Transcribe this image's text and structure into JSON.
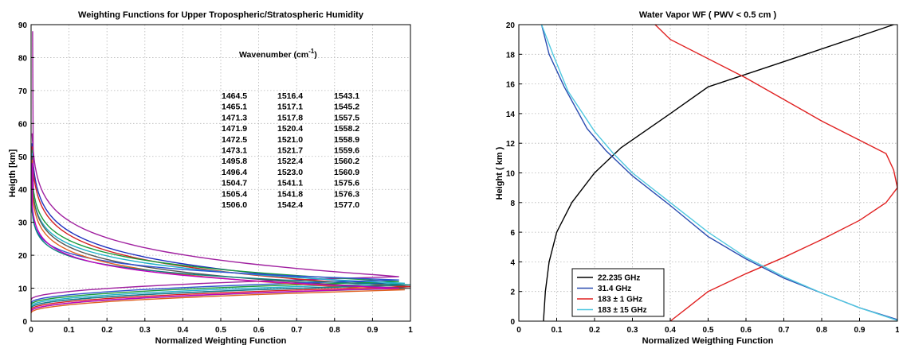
{
  "chart_data": [
    {
      "type": "line",
      "title": "Weighting Functions for Upper Tropospheric/Stratospheric Humidity",
      "xlabel": "Normalized Weighting Function",
      "ylabel": "Heigth [km]",
      "xlim": [
        0,
        1
      ],
      "ylim": [
        0,
        90
      ],
      "xticks": [
        "0",
        "0.1",
        "0.2",
        "0.3",
        "0.4",
        "0.5",
        "0.6",
        "0.7",
        "0.8",
        "0.9",
        "1"
      ],
      "yticks": [
        "0",
        "10",
        "20",
        "30",
        "40",
        "50",
        "60",
        "70",
        "80",
        "90"
      ],
      "grid": true,
      "annotation_title": "Wavenumber (cm",
      "annotation_unit_sup": "-1",
      "annotation_close": ")",
      "wavenumber_columns": [
        [
          "1464.5",
          "1465.1",
          "1471.3",
          "1471.9",
          "1472.5",
          "1473.1",
          "1495.8",
          "1496.4",
          "1504.7",
          "1505.4",
          "1506.0"
        ],
        [
          "1516.4",
          "1517.1",
          "1517.8",
          "1520.4",
          "1521.0",
          "1521.7",
          "1522.4",
          "1523.0",
          "1541.1",
          "1541.8",
          "1542.4"
        ],
        [
          "1543.1",
          "1545.2",
          "1557.5",
          "1558.2",
          "1558.9",
          "1559.6",
          "1560.2",
          "1560.9",
          "1575.6",
          "1576.3",
          "1577.0"
        ]
      ],
      "series_colors": [
        "#1f2fbf",
        "#d42020",
        "#1a9a3a",
        "#20b0c8",
        "#a020a0",
        "#555555",
        "#3050d0",
        "#e06020",
        "#108080",
        "#c000c0"
      ],
      "series": [
        {
          "peak_height": 13.5,
          "tail_height": 27,
          "color": "#a020a0"
        },
        {
          "peak_height": 11,
          "tail_height": 24,
          "color": "#1f2fbf"
        },
        {
          "peak_height": 10.5,
          "tail_height": 23,
          "color": "#d42020"
        },
        {
          "peak_height": 12,
          "tail_height": 22,
          "color": "#1a9a3a"
        },
        {
          "peak_height": 11.5,
          "tail_height": 21,
          "color": "#20b0c8"
        },
        {
          "peak_height": 10,
          "tail_height": 20,
          "color": "#555555"
        },
        {
          "peak_height": 12.5,
          "tail_height": 19,
          "color": "#3050d0"
        },
        {
          "peak_height": 9.5,
          "tail_height": 19,
          "color": "#e06020"
        },
        {
          "peak_height": 11,
          "tail_height": 18,
          "color": "#108080"
        },
        {
          "peak_height": 10,
          "tail_height": 18,
          "color": "#c000c0"
        }
      ]
    },
    {
      "type": "line",
      "title": "Water Vapor WF ( PWV < 0.5 cm )",
      "xlabel": "Normalized Weigthing Function",
      "ylabel": "Height ( km )",
      "xlim": [
        0,
        1
      ],
      "ylim": [
        0,
        20
      ],
      "xticks": [
        "0",
        "0.1",
        "0.2",
        "0.3",
        "0.4",
        "0.5",
        "0.6",
        "0.7",
        "0.8",
        "0.9",
        "1"
      ],
      "yticks": [
        "0",
        "2",
        "4",
        "6",
        "8",
        "10",
        "12",
        "14",
        "16",
        "18",
        "20"
      ],
      "grid": true,
      "legend_position": "bottom-left",
      "series": [
        {
          "name": "22.235 GHz",
          "color": "#000000",
          "points": [
            [
              0.065,
              0
            ],
            [
              0.07,
              2
            ],
            [
              0.08,
              4
            ],
            [
              0.1,
              6
            ],
            [
              0.14,
              8
            ],
            [
              0.2,
              10
            ],
            [
              0.27,
              11.7
            ],
            [
              0.4,
              14
            ],
            [
              0.5,
              15.8
            ],
            [
              0.7,
              17.5
            ],
            [
              0.99,
              20
            ]
          ]
        },
        {
          "name": "31.4 GHz",
          "color": "#2a4bb0",
          "points": [
            [
              0.06,
              20
            ],
            [
              0.08,
              18
            ],
            [
              0.12,
              15.8
            ],
            [
              0.18,
              13
            ],
            [
              0.23,
              11.5
            ],
            [
              0.3,
              9.8
            ],
            [
              0.4,
              7.8
            ],
            [
              0.5,
              5.7
            ],
            [
              0.6,
              4.2
            ],
            [
              0.7,
              2.9
            ],
            [
              0.8,
              1.9
            ],
            [
              0.9,
              0.9
            ],
            [
              1.0,
              0.1
            ]
          ]
        },
        {
          "name": "183 ± 1 GHz",
          "color": "#e02020",
          "points": [
            [
              0.4,
              0
            ],
            [
              0.45,
              1
            ],
            [
              0.5,
              2
            ],
            [
              0.55,
              2.6
            ],
            [
              0.6,
              3.2
            ],
            [
              0.7,
              4.3
            ],
            [
              0.8,
              5.5
            ],
            [
              0.9,
              6.8
            ],
            [
              0.97,
              8
            ],
            [
              1.0,
              9
            ],
            [
              0.99,
              10.2
            ],
            [
              0.97,
              11.3
            ],
            [
              0.8,
              13.5
            ],
            [
              0.6,
              16.4
            ],
            [
              0.4,
              19
            ],
            [
              0.36,
              20
            ]
          ]
        },
        {
          "name": "183 ± 15 GHz",
          "color": "#50c8e0",
          "points": [
            [
              0.06,
              20
            ],
            [
              0.09,
              18
            ],
            [
              0.13,
              15.5
            ],
            [
              0.2,
              12.8
            ],
            [
              0.25,
              11.3
            ],
            [
              0.3,
              10
            ],
            [
              0.4,
              8
            ],
            [
              0.5,
              6
            ],
            [
              0.6,
              4.3
            ],
            [
              0.7,
              3
            ],
            [
              0.8,
              1.9
            ],
            [
              0.9,
              0.9
            ],
            [
              1.0,
              0.05
            ]
          ]
        }
      ]
    }
  ]
}
